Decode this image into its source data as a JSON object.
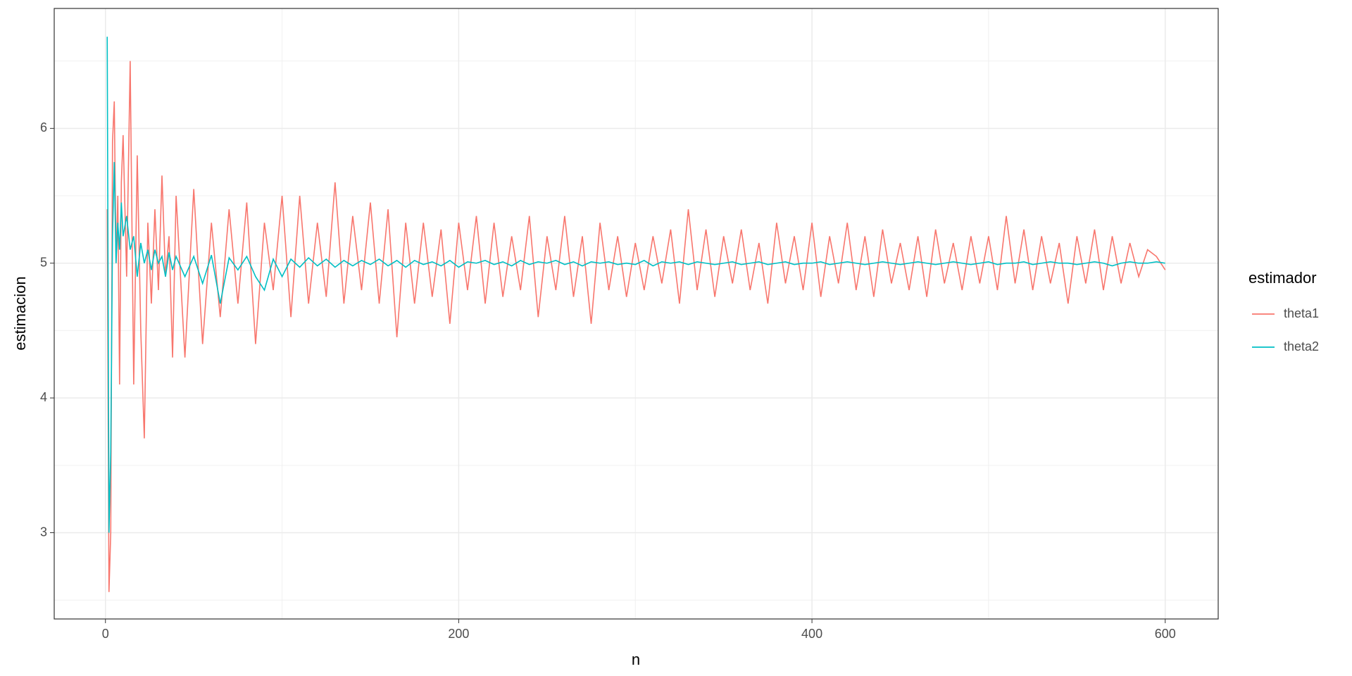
{
  "chart_data": {
    "type": "line",
    "x_label": "n",
    "y_label": "estimacion",
    "legend_title": "estimador",
    "legend_position": "right",
    "grid": true,
    "xlim": [
      -29.0,
      630.0
    ],
    "ylim": [
      2.36,
      6.89
    ],
    "xticks": [
      0,
      200,
      400,
      600
    ],
    "yticks": [
      3,
      4,
      5,
      6
    ],
    "x_minor_grid": [
      100,
      300,
      500
    ],
    "y_minor_grid": [
      2.5,
      3.5,
      4.5,
      5.5,
      6.5
    ],
    "x": [
      1,
      2,
      3,
      4,
      5,
      6,
      7,
      8,
      9,
      10,
      12,
      14,
      16,
      18,
      20,
      22,
      24,
      26,
      28,
      30,
      32,
      34,
      36,
      38,
      40,
      45,
      50,
      55,
      60,
      65,
      70,
      75,
      80,
      85,
      90,
      95,
      100,
      105,
      110,
      115,
      120,
      125,
      130,
      135,
      140,
      145,
      150,
      155,
      160,
      165,
      170,
      175,
      180,
      185,
      190,
      195,
      200,
      205,
      210,
      215,
      220,
      225,
      230,
      235,
      240,
      245,
      250,
      255,
      260,
      265,
      270,
      275,
      280,
      285,
      290,
      295,
      300,
      305,
      310,
      315,
      320,
      325,
      330,
      335,
      340,
      345,
      350,
      355,
      360,
      365,
      370,
      375,
      380,
      385,
      390,
      395,
      400,
      405,
      410,
      415,
      420,
      425,
      430,
      435,
      440,
      445,
      450,
      455,
      460,
      465,
      470,
      475,
      480,
      485,
      490,
      495,
      500,
      505,
      510,
      515,
      520,
      525,
      530,
      535,
      540,
      545,
      550,
      555,
      560,
      565,
      570,
      575,
      580,
      585,
      590,
      595,
      600
    ],
    "series": [
      {
        "name": "theta1",
        "color": "#F8766D",
        "values": [
          5.4,
          2.56,
          3.0,
          5.9,
          6.2,
          5.0,
          5.5,
          4.1,
          5.6,
          5.95,
          4.9,
          6.5,
          4.1,
          5.8,
          4.5,
          3.7,
          5.3,
          4.7,
          5.4,
          4.8,
          5.65,
          4.9,
          5.2,
          4.3,
          5.5,
          4.3,
          5.55,
          4.4,
          5.3,
          4.6,
          5.4,
          4.7,
          5.45,
          4.4,
          5.3,
          4.8,
          5.5,
          4.6,
          5.5,
          4.7,
          5.3,
          4.75,
          5.6,
          4.7,
          5.35,
          4.8,
          5.45,
          4.7,
          5.4,
          4.45,
          5.3,
          4.7,
          5.3,
          4.75,
          5.25,
          4.55,
          5.3,
          4.8,
          5.35,
          4.7,
          5.3,
          4.75,
          5.2,
          4.8,
          5.35,
          4.6,
          5.2,
          4.8,
          5.35,
          4.75,
          5.2,
          4.55,
          5.3,
          4.8,
          5.2,
          4.75,
          5.15,
          4.8,
          5.2,
          4.85,
          5.25,
          4.7,
          5.4,
          4.8,
          5.25,
          4.75,
          5.2,
          4.85,
          5.25,
          4.8,
          5.15,
          4.7,
          5.3,
          4.85,
          5.2,
          4.8,
          5.3,
          4.75,
          5.2,
          4.85,
          5.3,
          4.8,
          5.2,
          4.75,
          5.25,
          4.85,
          5.15,
          4.8,
          5.2,
          4.75,
          5.25,
          4.85,
          5.15,
          4.8,
          5.2,
          4.85,
          5.2,
          4.8,
          5.35,
          4.85,
          5.25,
          4.8,
          5.2,
          4.85,
          5.15,
          4.7,
          5.2,
          4.85,
          5.25,
          4.8,
          5.2,
          4.85,
          5.15,
          4.9,
          5.1,
          5.05,
          4.95
        ]
      },
      {
        "name": "theta2",
        "color": "#00BFC4",
        "values": [
          6.68,
          3.0,
          3.6,
          5.2,
          5.75,
          5.0,
          5.3,
          5.1,
          5.45,
          5.2,
          5.35,
          5.1,
          5.2,
          4.9,
          5.15,
          5.0,
          5.1,
          4.95,
          5.1,
          5.0,
          5.05,
          4.9,
          5.08,
          4.95,
          5.05,
          4.9,
          5.05,
          4.85,
          5.06,
          4.7,
          5.04,
          4.95,
          5.05,
          4.9,
          4.8,
          5.03,
          4.9,
          5.03,
          4.97,
          5.04,
          4.98,
          5.03,
          4.97,
          5.02,
          4.98,
          5.02,
          4.99,
          5.03,
          4.98,
          5.02,
          4.97,
          5.02,
          4.99,
          5.01,
          4.98,
          5.02,
          4.97,
          5.01,
          5.0,
          5.02,
          4.99,
          5.01,
          4.98,
          5.02,
          4.99,
          5.01,
          5.0,
          5.02,
          4.99,
          5.01,
          4.98,
          5.01,
          5.0,
          5.01,
          4.99,
          5.0,
          4.99,
          5.02,
          4.98,
          5.01,
          5.0,
          5.01,
          4.99,
          5.01,
          5.0,
          4.99,
          5.0,
          5.01,
          4.99,
          5.0,
          5.01,
          4.99,
          5.0,
          5.01,
          4.99,
          5.0,
          5.0,
          5.01,
          4.99,
          5.0,
          5.01,
          5.0,
          4.99,
          5.0,
          5.01,
          5.0,
          4.99,
          5.0,
          5.01,
          5.0,
          4.99,
          5.0,
          5.01,
          5.0,
          4.99,
          5.0,
          5.01,
          4.99,
          5.0,
          5.0,
          5.01,
          4.99,
          5.0,
          5.01,
          5.0,
          5.0,
          4.99,
          5.0,
          5.01,
          5.0,
          4.98,
          5.0,
          5.01,
          5.0,
          5.0,
          5.01,
          5.0
        ]
      }
    ]
  }
}
